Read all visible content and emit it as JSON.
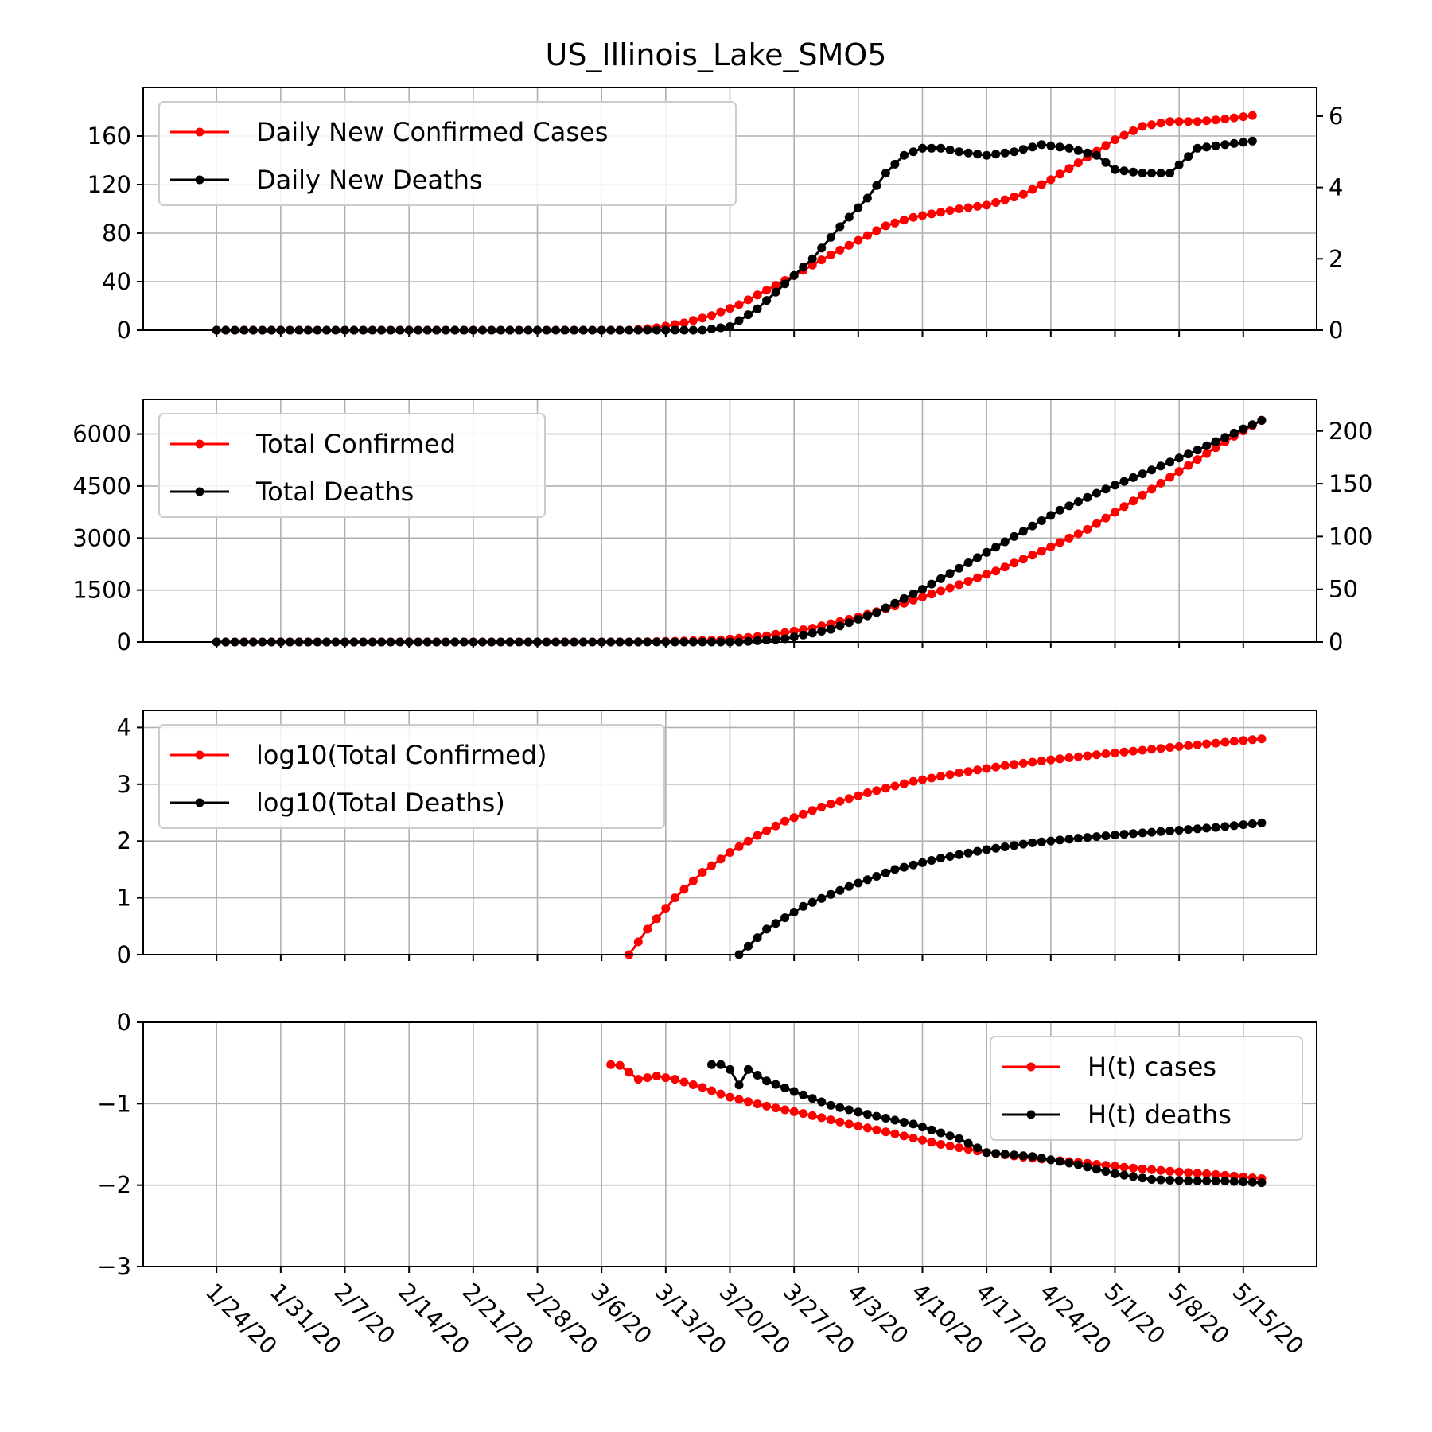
{
  "figure": {
    "title": "US_Illinois_Lake_SMO5"
  },
  "colors": {
    "cases": "#ff0000",
    "deaths": "#000000",
    "grid": "#b0b0b0"
  },
  "x_axis": {
    "start_date": "2020-01-24",
    "tick_labels": [
      "1/24/20",
      "1/31/20",
      "2/7/20",
      "2/14/20",
      "2/21/20",
      "2/28/20",
      "3/6/20",
      "3/13/20",
      "3/20/20",
      "3/27/20",
      "4/3/20",
      "4/10/20",
      "4/17/20",
      "4/24/20",
      "5/1/20",
      "5/8/20",
      "5/15/20"
    ],
    "range_dates": [
      "2020-01-16",
      "2020-05-23"
    ]
  },
  "chart_data": [
    {
      "type": "line",
      "title": "US_Illinois_Lake_SMO5",
      "ylim": [
        0,
        200
      ],
      "yticks": [
        0,
        40,
        80,
        120,
        160
      ],
      "ylim_right": [
        0,
        6.8
      ],
      "yticks_right": [
        0,
        2,
        4,
        6
      ],
      "legend_position": "upper-left",
      "grid": true,
      "series": [
        {
          "name": "Daily New Confirmed Cases",
          "axis": "left",
          "color": "#ff0000",
          "x": [
            "2020-01-24",
            "2020-03-09",
            "2020-03-12",
            "2020-03-15",
            "2020-03-18",
            "2020-03-21",
            "2020-03-24",
            "2020-03-27",
            "2020-03-30",
            "2020-04-03",
            "2020-04-06",
            "2020-04-09",
            "2020-04-14",
            "2020-04-17",
            "2020-04-21",
            "2020-04-24",
            "2020-04-27",
            "2020-05-01",
            "2020-05-04",
            "2020-05-07",
            "2020-05-10",
            "2020-05-13",
            "2020-05-16"
          ],
          "values": [
            0,
            0,
            2,
            6,
            12,
            21,
            33,
            45,
            58,
            74,
            86,
            93,
            100,
            103,
            112,
            124,
            138,
            157,
            168,
            172,
            172,
            174,
            177
          ]
        },
        {
          "name": "Daily New Deaths",
          "axis": "right",
          "color": "#000000",
          "x": [
            "2020-01-24",
            "2020-03-17",
            "2020-03-20",
            "2020-03-23",
            "2020-03-26",
            "2020-03-29",
            "2020-04-01",
            "2020-04-04",
            "2020-04-06",
            "2020-04-08",
            "2020-04-10",
            "2020-04-12",
            "2020-04-14",
            "2020-04-17",
            "2020-04-20",
            "2020-04-23",
            "2020-04-26",
            "2020-04-29",
            "2020-05-01",
            "2020-05-04",
            "2020-05-07",
            "2020-05-10",
            "2020-05-13",
            "2020-05-16"
          ],
          "values": [
            0,
            0,
            0.1,
            0.6,
            1.3,
            2.0,
            2.9,
            3.7,
            4.4,
            4.9,
            5.1,
            5.1,
            5.0,
            4.9,
            5.0,
            5.2,
            5.1,
            4.9,
            4.5,
            4.4,
            4.4,
            5.1,
            5.2,
            5.3
          ]
        }
      ]
    },
    {
      "type": "line",
      "ylim": [
        0,
        7000
      ],
      "yticks": [
        0,
        1500,
        3000,
        4500,
        6000
      ],
      "ylim_right": [
        0,
        230
      ],
      "yticks_right": [
        0,
        50,
        100,
        150,
        200
      ],
      "legend_position": "upper-left",
      "grid": true,
      "series": [
        {
          "name": "Total Confirmed",
          "axis": "left",
          "color": "#ff0000",
          "x": [
            "2020-01-24",
            "2020-03-09",
            "2020-03-14",
            "2020-03-19",
            "2020-03-24",
            "2020-03-29",
            "2020-04-03",
            "2020-04-08",
            "2020-04-13",
            "2020-04-18",
            "2020-04-23",
            "2020-04-28",
            "2020-05-03",
            "2020-05-08",
            "2020-05-13",
            "2020-05-17"
          ],
          "values": [
            0,
            0,
            20,
            60,
            180,
            400,
            720,
            1120,
            1560,
            2050,
            2620,
            3250,
            4070,
            4920,
            5780,
            6400
          ]
        },
        {
          "name": "Total Deaths",
          "axis": "right",
          "color": "#000000",
          "x": [
            "2020-01-24",
            "2020-03-21",
            "2020-03-26",
            "2020-03-31",
            "2020-04-05",
            "2020-04-10",
            "2020-04-15",
            "2020-04-20",
            "2020-04-25",
            "2020-04-30",
            "2020-05-05",
            "2020-05-10",
            "2020-05-17"
          ],
          "values": [
            0,
            0,
            3,
            12,
            28,
            50,
            75,
            100,
            125,
            145,
            163,
            182,
            210
          ]
        }
      ]
    },
    {
      "type": "line",
      "ylim": [
        0,
        4.3
      ],
      "yticks": [
        0,
        1,
        2,
        3,
        4
      ],
      "legend_position": "upper-left",
      "grid": true,
      "series": [
        {
          "name": "log10(Total Confirmed)",
          "color": "#ff0000",
          "x": [
            "2020-03-09",
            "2020-03-11",
            "2020-03-14",
            "2020-03-17",
            "2020-03-20",
            "2020-03-23",
            "2020-03-26",
            "2020-03-30",
            "2020-04-04",
            "2020-04-09",
            "2020-04-14",
            "2020-04-19",
            "2020-04-24",
            "2020-04-29",
            "2020-05-04",
            "2020-05-09",
            "2020-05-13",
            "2020-05-17"
          ],
          "values": [
            0,
            0.45,
            1.0,
            1.45,
            1.8,
            2.1,
            2.35,
            2.6,
            2.85,
            3.05,
            3.2,
            3.33,
            3.43,
            3.52,
            3.6,
            3.68,
            3.74,
            3.8
          ]
        },
        {
          "name": "log10(Total Deaths)",
          "color": "#000000",
          "x": [
            "2020-03-21",
            "2020-03-24",
            "2020-03-28",
            "2020-04-02",
            "2020-04-07",
            "2020-04-12",
            "2020-04-17",
            "2020-04-22",
            "2020-04-27",
            "2020-05-02",
            "2020-05-07",
            "2020-05-12",
            "2020-05-17"
          ],
          "values": [
            0,
            0.45,
            0.85,
            1.2,
            1.5,
            1.7,
            1.85,
            1.97,
            2.05,
            2.12,
            2.18,
            2.24,
            2.32
          ]
        }
      ]
    },
    {
      "type": "line",
      "ylim": [
        -3,
        0
      ],
      "yticks": [
        -3,
        -2,
        -1,
        0
      ],
      "ytick_labels": [
        "−3",
        "−2",
        "−1",
        "0"
      ],
      "legend_position": "upper-right",
      "grid": true,
      "series": [
        {
          "name": "H(t) cases",
          "color": "#ff0000",
          "x": [
            "2020-03-07",
            "2020-03-08",
            "2020-03-10",
            "2020-03-12",
            "2020-03-14",
            "2020-03-17",
            "2020-03-20",
            "2020-03-24",
            "2020-03-28",
            "2020-04-02",
            "2020-04-07",
            "2020-04-12",
            "2020-04-17",
            "2020-04-22",
            "2020-04-27",
            "2020-05-02",
            "2020-05-07",
            "2020-05-12",
            "2020-05-17"
          ],
          "values": [
            -0.52,
            -0.53,
            -0.7,
            -0.66,
            -0.7,
            -0.8,
            -0.92,
            -1.03,
            -1.12,
            -1.25,
            -1.37,
            -1.5,
            -1.6,
            -1.67,
            -1.72,
            -1.78,
            -1.83,
            -1.87,
            -1.92
          ]
        },
        {
          "name": "H(t) deaths",
          "color": "#000000",
          "x": [
            "2020-03-18",
            "2020-03-19",
            "2020-03-20",
            "2020-03-21",
            "2020-03-22",
            "2020-03-24",
            "2020-03-27",
            "2020-03-31",
            "2020-04-04",
            "2020-04-09",
            "2020-04-14",
            "2020-04-17",
            "2020-04-22",
            "2020-04-27",
            "2020-05-01",
            "2020-05-05",
            "2020-05-09",
            "2020-05-13",
            "2020-05-17"
          ],
          "values": [
            -0.52,
            -0.52,
            -0.58,
            -0.77,
            -0.58,
            -0.72,
            -0.85,
            -1.02,
            -1.13,
            -1.25,
            -1.43,
            -1.6,
            -1.65,
            -1.75,
            -1.86,
            -1.93,
            -1.95,
            -1.95,
            -1.97
          ]
        }
      ]
    }
  ]
}
